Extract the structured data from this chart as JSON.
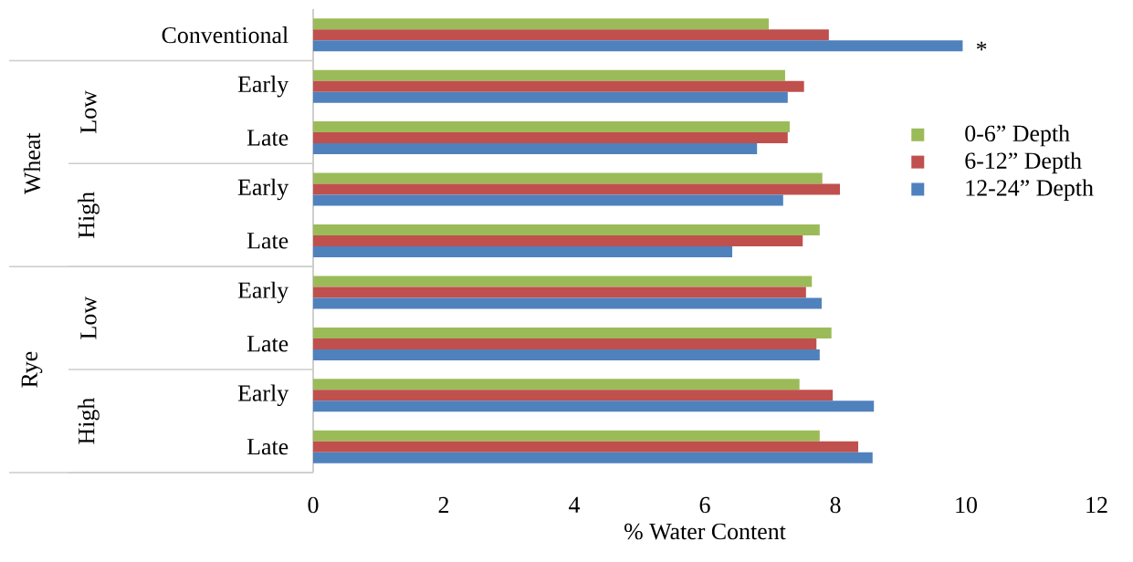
{
  "chart_data": {
    "type": "bar",
    "orientation": "horizontal",
    "xlabel": "% Water Content",
    "categories": [
      "Conventional",
      "Early",
      "Late",
      "Early",
      "Late",
      "Early",
      "Late",
      "Early",
      "Late"
    ],
    "series": [
      {
        "name": "0-6” Depth",
        "color": "#9bbb59",
        "values": [
          6.98,
          7.23,
          7.3,
          7.8,
          7.76,
          7.64,
          7.94,
          7.45,
          7.76
        ]
      },
      {
        "name": "6-12” Depth",
        "color": "#c0504d",
        "values": [
          7.9,
          7.52,
          7.27,
          8.07,
          7.5,
          7.55,
          7.71,
          7.96,
          8.35
        ]
      },
      {
        "name": "12-24” Depth",
        "color": "#4f81bd",
        "values": [
          9.95,
          7.27,
          6.8,
          7.2,
          6.42,
          7.79,
          7.76,
          8.59,
          8.57
        ]
      }
    ],
    "xlim": [
      0,
      12
    ],
    "xticks": [
      0,
      2,
      4,
      6,
      8,
      10,
      12
    ],
    "grid": false,
    "legend": "right",
    "annotations": [
      "Wheat",
      "Low",
      "High",
      "Rye",
      "Low",
      "High",
      "*"
    ]
  }
}
